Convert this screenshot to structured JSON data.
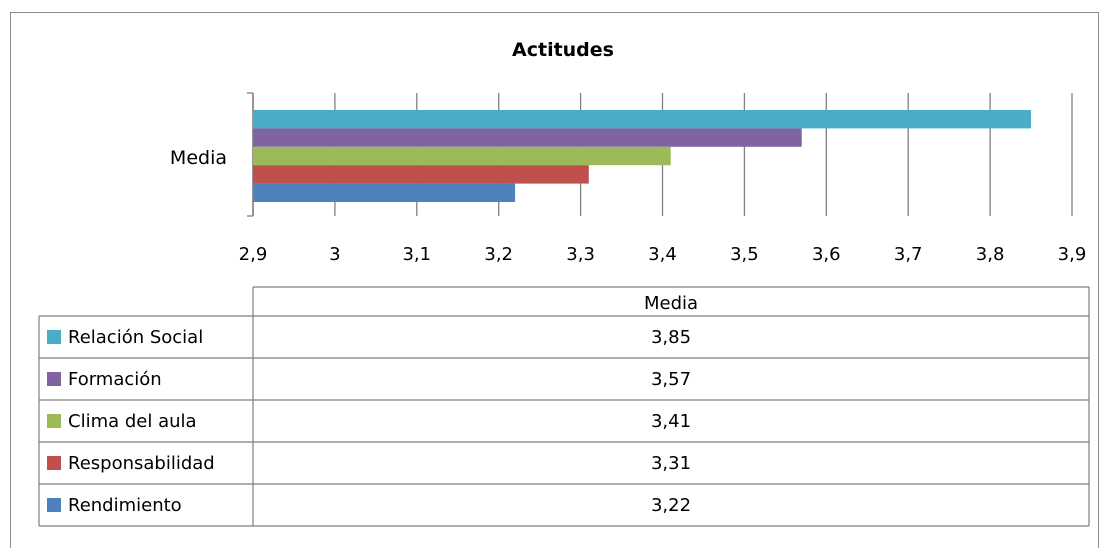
{
  "chart_data": {
    "type": "bar",
    "orientation": "horizontal",
    "title": "Actitudes",
    "categories": [
      "Media"
    ],
    "series": [
      {
        "name": "Relación Social",
        "values": [
          3.85
        ],
        "label": "3,85",
        "color": "#4bacc6"
      },
      {
        "name": "Formación",
        "values": [
          3.57
        ],
        "label": "3,57",
        "color": "#8064a2"
      },
      {
        "name": "Clima del aula",
        "values": [
          3.41
        ],
        "label": "3,41",
        "color": "#9bbb59"
      },
      {
        "name": "Responsabilidad",
        "values": [
          3.31
        ],
        "label": "3,31",
        "color": "#c0504d"
      },
      {
        "name": "Rendimiento",
        "values": [
          3.22
        ],
        "label": "3,22",
        "color": "#4f81bd"
      }
    ],
    "xlim": [
      2.9,
      3.9
    ],
    "x_ticks": [
      "2,9",
      "3",
      "3,1",
      "3,2",
      "3,3",
      "3,4",
      "3,5",
      "3,6",
      "3,7",
      "3,8",
      "3,9"
    ],
    "grid": true,
    "data_table": {
      "header": "Media",
      "rows": [
        {
          "label": "Relación Social",
          "value": "3,85"
        },
        {
          "label": "Formación",
          "value": "3,57"
        },
        {
          "label": "Clima del aula",
          "value": "3,41"
        },
        {
          "label": "Responsabilidad",
          "value": "3,31"
        },
        {
          "label": "Rendimiento",
          "value": "3,22"
        }
      ]
    }
  }
}
